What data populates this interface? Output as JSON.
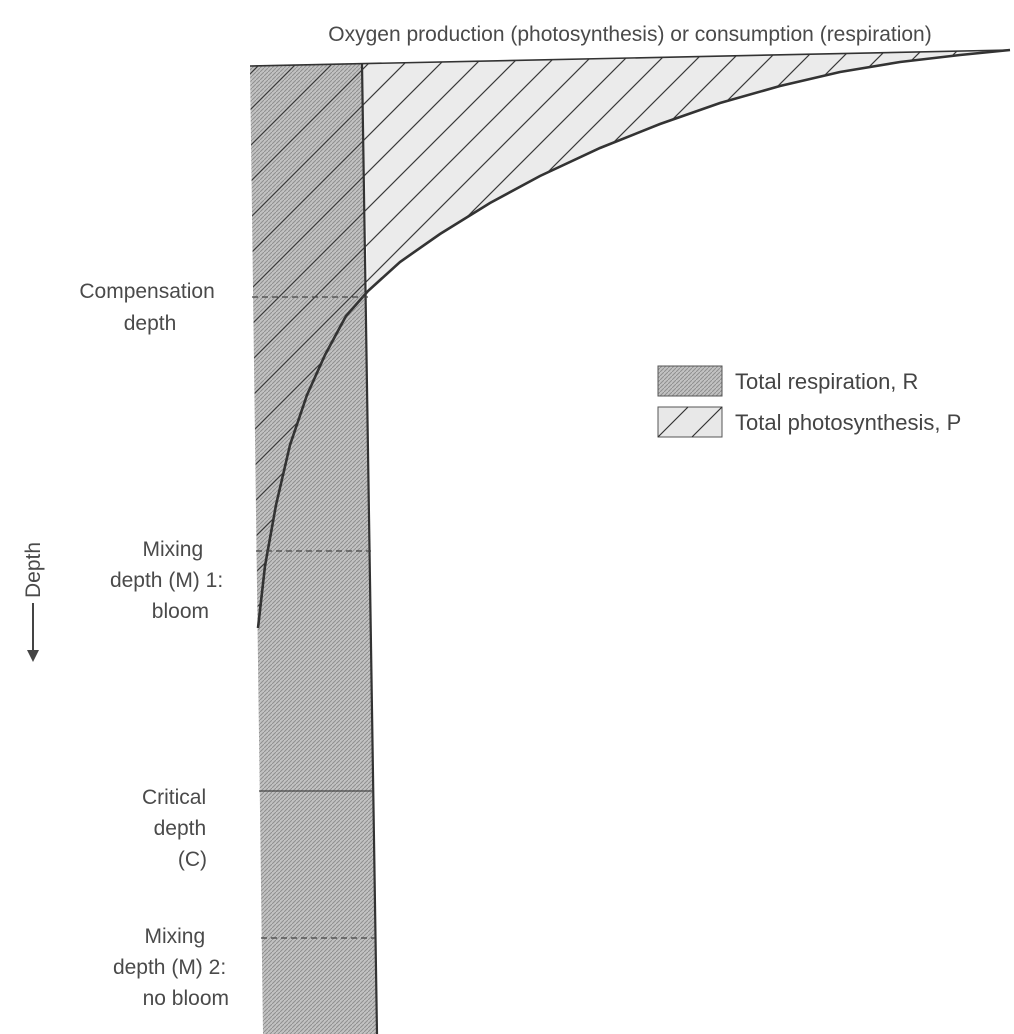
{
  "title": "Oxygen production (photosynthesis) or consumption (respiration)",
  "axis_label": "Depth",
  "depth_labels": {
    "compensation": [
      "Compensation",
      "depth"
    ],
    "mixing1": [
      "Mixing",
      "depth (M) 1:",
      "bloom"
    ],
    "critical": [
      "Critical",
      "depth",
      "(C)"
    ],
    "mixing2": [
      "Mixing",
      "depth (M) 2:",
      "no bloom"
    ]
  },
  "legend": {
    "respiration": "Total respiration, R",
    "photosynthesis": "Total photosynthesis, P"
  },
  "colors": {
    "respiration_fill": "#b3b3b3",
    "photosynthesis_fill": "#e8e8e8",
    "line": "#333333",
    "text": "#4a4a4a"
  }
}
